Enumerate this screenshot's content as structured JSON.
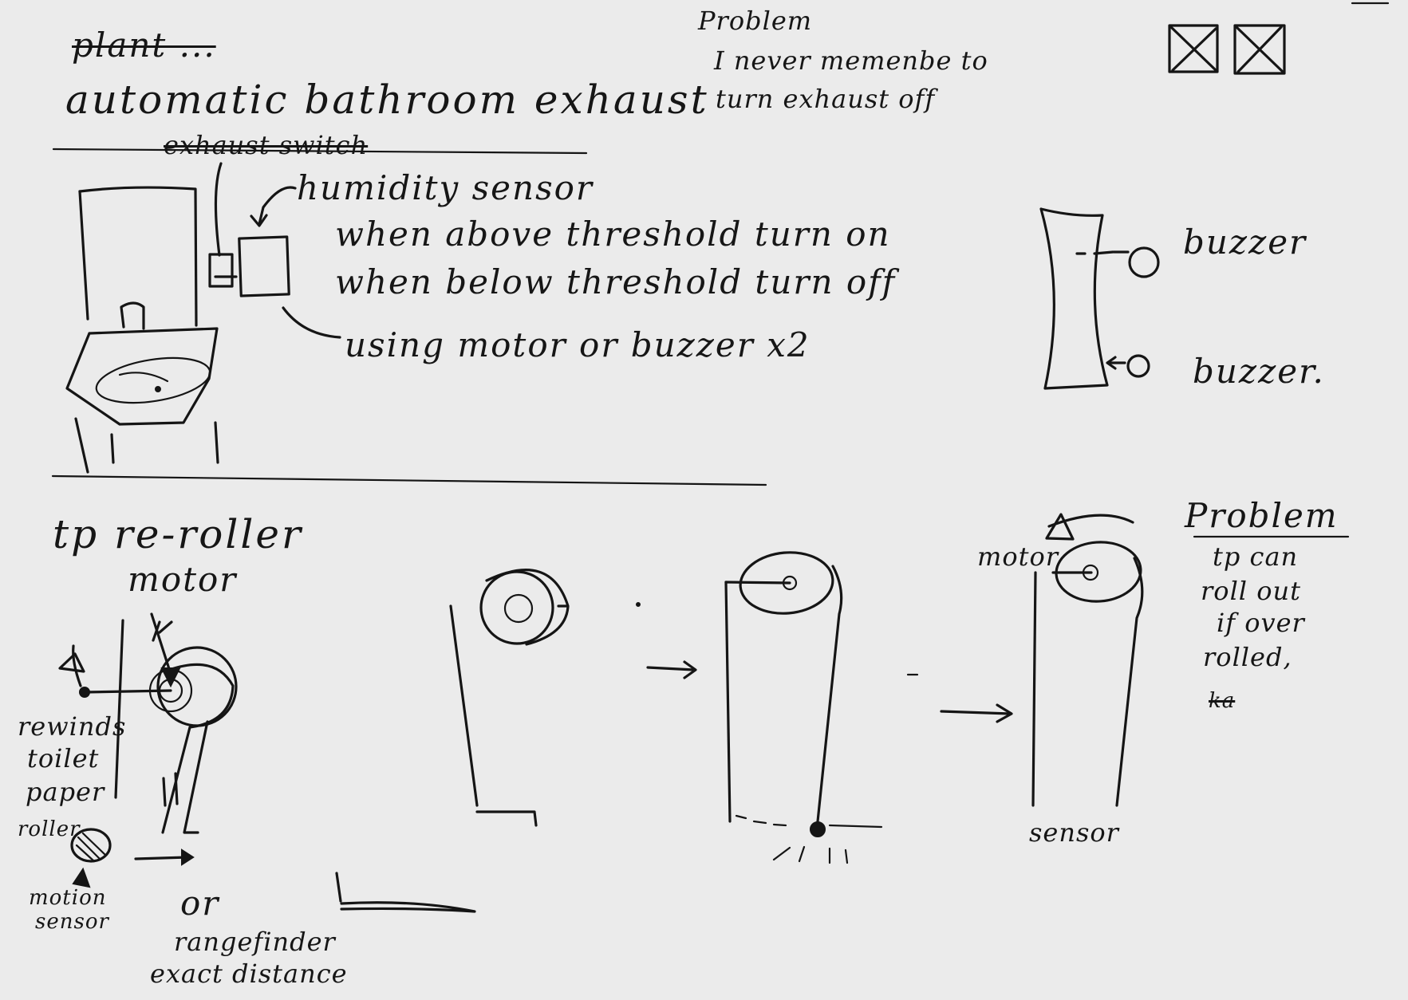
{
  "ideas": [
    {
      "crossed_out_title": "plant ...",
      "title": "automatic bathroom exhaust",
      "problem_heading": "Problem",
      "problem_text": [
        "I never memenbe to",
        "turn exhaust off"
      ],
      "crossed_out_label": "exhaust switch",
      "sensor_label": "humidity sensor",
      "rules": [
        "when above threshold turn on",
        "when below threshold turn off"
      ],
      "actuator_note": "using motor or buzzer x2",
      "buzzer_labels": [
        "buzzer",
        "buzzer."
      ]
    },
    {
      "title": "tp re-roller",
      "motor_label": "motor",
      "rewind_note": [
        "rewinds",
        "toilet",
        "paper",
        "roller"
      ],
      "motion_sensor_label": [
        "motion",
        "sensor"
      ],
      "or_label": "or",
      "rangefinder_label": [
        "rangefinder",
        "exact distance"
      ],
      "stage_motor_label": "motor",
      "stage_sensor_label": "sensor",
      "problem_heading": "Problem",
      "problem_text": [
        "tp can",
        "roll out",
        "if over",
        "rolled,",
        "ka"
      ]
    }
  ],
  "icons": [
    "crossed-box-icon",
    "crossed-box-icon",
    "arrow-right-icon"
  ]
}
